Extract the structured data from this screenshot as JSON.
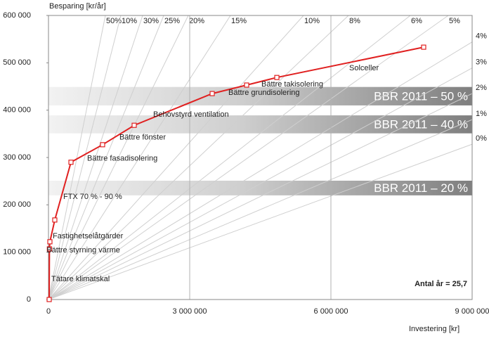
{
  "chart_data": {
    "type": "line",
    "y_label": "Besparing [kr/år]",
    "x_label": "Investering [kr]",
    "x": [
      15000,
      20000,
      30000,
      134000,
      478000,
      1149000,
      1821000,
      3478000,
      4209000,
      4851000,
      7970000
    ],
    "series": [
      {
        "color": "#e02020",
        "values": [
          0,
          107000,
          122000,
          168000,
          290000,
          327000,
          368000,
          435000,
          453000,
          469000,
          533000
        ]
      }
    ],
    "point_labels": [
      "Tätare klimatskal",
      "Bättre styrning värme",
      "Fastighetselåtgärder",
      "FTX 70 % - 90 %",
      "Bättre fasadisolering",
      "Bättre fönster",
      "Behovstyrd ventilation",
      "Bättre grundisolering",
      "Bättre takisolering",
      null,
      "Solceller"
    ],
    "xlim": [
      0,
      9000000
    ],
    "ylim": [
      0,
      600000
    ],
    "xticks": [
      0,
      {
        "value": 3000000,
        "label": "3 000 000"
      },
      {
        "value": 6000000,
        "label": "6 000 000"
      },
      {
        "value": 9000000,
        "label": "9 000 000"
      }
    ],
    "yticks": [
      0,
      {
        "value": 100000,
        "label": "100 000"
      },
      {
        "value": 200000,
        "label": "200 000"
      },
      {
        "value": 300000,
        "label": "300 000"
      },
      {
        "value": 400000,
        "label": "400 000"
      },
      {
        "value": 500000,
        "label": "500 000"
      },
      {
        "value": 600000,
        "label": "600 000"
      }
    ],
    "grid": true,
    "rays": [
      {
        "label": "50%",
        "x": 1209000,
        "y": 600000
      },
      {
        "label": "10%",
        "x": 1537000,
        "y": 600000
      },
      {
        "label": "30%",
        "x": 2000000,
        "y": 600000
      },
      {
        "label": "25%",
        "x": 2448000,
        "y": 600000
      },
      {
        "label": "20%",
        "x": 2970000,
        "y": 600000
      },
      {
        "label": "15%",
        "x": 3866000,
        "y": 600000
      },
      {
        "label": "10%",
        "x": 5418000,
        "y": 600000
      },
      {
        "label": "8%",
        "x": 6373000,
        "y": 600000
      },
      {
        "label": "6%",
        "x": 7687000,
        "y": 600000
      },
      {
        "label": "5%",
        "x": 8493000,
        "y": 600000
      },
      {
        "label": "4%",
        "x": 9000000,
        "y": 544000
      },
      {
        "label": "3%",
        "x": 9000000,
        "y": 489000
      },
      {
        "label": "2%",
        "x": 9000000,
        "y": 435000
      },
      {
        "label": "1%",
        "x": 9000000,
        "y": 380000
      },
      {
        "label": "0%",
        "x": 9000000,
        "y": 328000
      }
    ],
    "bands": [
      {
        "label": "BBR 2011 – 50 %",
        "from": 410000,
        "to": 449000
      },
      {
        "label": "BBR 2011 – 40 %",
        "from": 351000,
        "to": 389000
      },
      {
        "label": "BBR 2011 – 20 %",
        "from": 220000,
        "to": 251000
      }
    ],
    "note": "Antal år = 25,7"
  }
}
